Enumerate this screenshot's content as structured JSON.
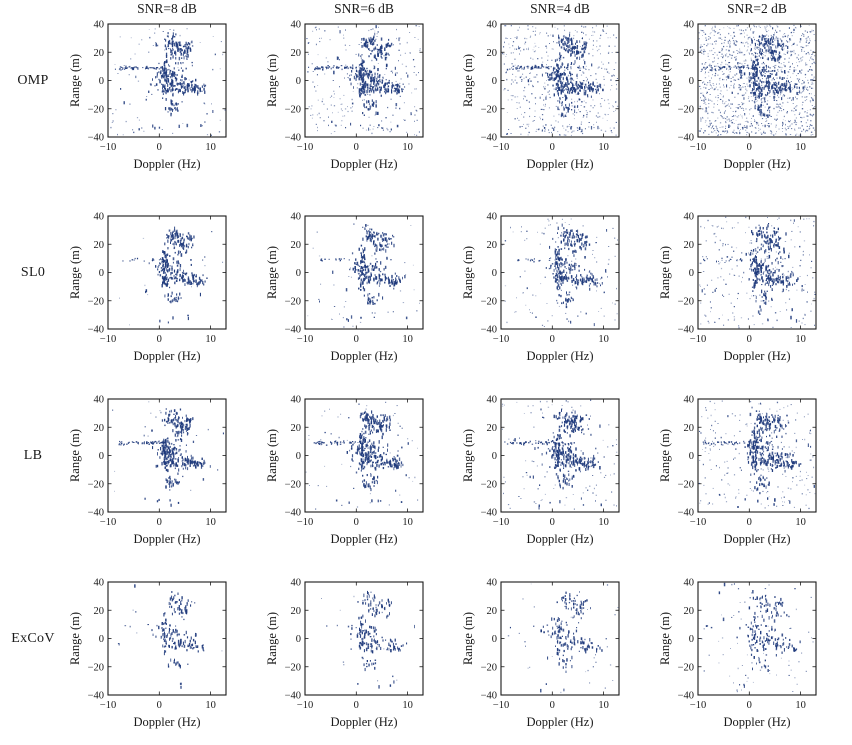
{
  "figure": {
    "background": "#ffffff",
    "text_color": "#1a1a1a",
    "kind": "4x4 grid of range-Doppler scatter reconstructions"
  },
  "chart_data": {
    "type": "scatter",
    "grid_layout": {
      "rows": 4,
      "cols": 4,
      "row_labels": [
        "OMP",
        "SL0",
        "LB",
        "ExCoV"
      ],
      "col_titles": [
        "SNR=8 dB",
        "SNR=6 dB",
        "SNR=4 dB",
        "SNR=2 dB"
      ]
    },
    "xlabel": "Doppler (Hz)",
    "ylabel": "Range (m)",
    "xlim": [
      -10,
      13
    ],
    "ylim": [
      -40,
      40
    ],
    "xticks": [
      -10,
      0,
      10
    ],
    "xtick_labels": [
      "−10",
      "0",
      "10"
    ],
    "yticks": [
      40,
      20,
      0,
      -20,
      -40
    ],
    "ytick_labels": [
      "40",
      "20",
      "0",
      "−20",
      "−40"
    ],
    "grid": false,
    "legend": null,
    "point_color": "#1f3a7c",
    "frame_color": "#1a1a1a",
    "algorithms": [
      {
        "name": "OMP",
        "target_scale": 1.0,
        "line_scale": 1.0,
        "halo_scale": 1.0
      },
      {
        "name": "SL0",
        "target_scale": 0.85,
        "line_scale": 0.3,
        "halo_scale": 0.6
      },
      {
        "name": "LB",
        "target_scale": 1.0,
        "line_scale": 1.0,
        "halo_scale": 0.8
      },
      {
        "name": "ExCoV",
        "target_scale": 0.5,
        "line_scale": 0.08,
        "halo_scale": 0.35
      }
    ],
    "snr_levels": [
      {
        "label": "SNR=8 dB",
        "spread_mult": 1.0
      },
      {
        "label": "SNR=6 dB",
        "spread_mult": 1.05
      },
      {
        "label": "SNR=4 dB",
        "spread_mult": 1.15
      },
      {
        "label": "SNR=2 dB",
        "spread_mult": 1.3
      }
    ],
    "noise_counts": [
      [
        90,
        260,
        520,
        1250
      ],
      [
        15,
        45,
        110,
        240
      ],
      [
        20,
        55,
        115,
        210
      ],
      [
        6,
        14,
        35,
        70
      ]
    ],
    "target_clusters": [
      {
        "id": "top-left-blob",
        "x": 2.6,
        "y": 27.5,
        "sx": 0.85,
        "sy": 2.8,
        "n": 40
      },
      {
        "id": "top-right-blob",
        "x": 4.3,
        "y": 21.0,
        "sx": 1.0,
        "sy": 3.2,
        "n": 50
      },
      {
        "id": "top-outlier",
        "x": 5.9,
        "y": 26.0,
        "sx": 0.5,
        "sy": 1.3,
        "n": 9
      },
      {
        "id": "upper-strip",
        "x": 1.0,
        "y": 10.0,
        "sx": 0.35,
        "sy": 4.5,
        "n": 34
      },
      {
        "id": "left-line",
        "x": -3.2,
        "y": 9.6,
        "sx": 2.6,
        "sy": 0.55,
        "n": 42,
        "line": true
      },
      {
        "id": "left-line-tail",
        "x": -7.3,
        "y": 8.8,
        "sx": 1.0,
        "sy": 0.5,
        "n": 8,
        "line": true
      },
      {
        "id": "center-cluster",
        "x": 1.9,
        "y": 4.5,
        "sx": 1.4,
        "sy": 2.6,
        "n": 56
      },
      {
        "id": "center-lower",
        "x": 2.9,
        "y": -3.5,
        "sx": 1.0,
        "sy": 2.4,
        "n": 38
      },
      {
        "id": "lower-strip",
        "x": 0.95,
        "y": -5.0,
        "sx": 0.3,
        "sy": 3.2,
        "n": 22
      },
      {
        "id": "right-cluster",
        "x": 6.1,
        "y": -4.0,
        "sx": 1.2,
        "sy": 2.3,
        "n": 52
      },
      {
        "id": "right-tail",
        "x": 8.0,
        "y": -5.5,
        "sx": 0.7,
        "sy": 1.2,
        "n": 12
      },
      {
        "id": "bottom-blob",
        "x": 2.6,
        "y": -17.5,
        "sx": 0.7,
        "sy": 2.4,
        "n": 24
      },
      {
        "id": "halo",
        "x": 2.5,
        "y": 4.0,
        "sx": 4.5,
        "sy": 15.0,
        "n": 26,
        "halo": true
      },
      {
        "id": "bottom-sparse",
        "x": 1.5,
        "y": -32.0,
        "sx": 3.0,
        "sy": 1.5,
        "n": 8,
        "halo": true
      }
    ],
    "seed": 1337
  }
}
